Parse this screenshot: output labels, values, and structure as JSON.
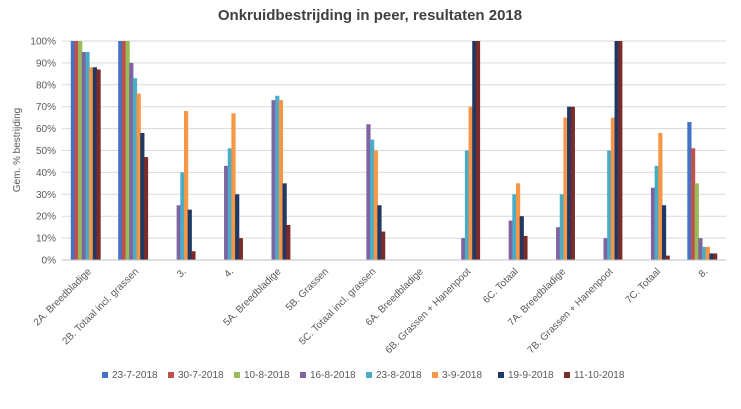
{
  "chart_data": {
    "type": "bar",
    "title": "Onkruidbestrijding in peer, resultaten 2018",
    "xlabel": "",
    "ylabel": "Gem. % bestrijding",
    "ylim": [
      0,
      100
    ],
    "yticks": [
      "0%",
      "10%",
      "20%",
      "30%",
      "40%",
      "50%",
      "60%",
      "70%",
      "80%",
      "90%",
      "100%"
    ],
    "grid": true,
    "legend_position": "bottom",
    "categories": [
      "2A. Breedbladige",
      "2B. Totaal incl. grassen",
      "3.",
      "4.",
      "5A. Breedbladige",
      "5B. Grassen",
      "5C. Totaal incl. grassen",
      "6A. Breedbladige",
      "6B. Grassen + Hanenpoot",
      "6C. Totaal",
      "7A. Breedbladige",
      "7B. Grassen + Hanenpoot",
      "7C. Totaal",
      "8."
    ],
    "series": [
      {
        "name": "23-7-2018",
        "color": "#4472C4",
        "values": [
          100,
          100,
          0,
          0,
          0,
          0,
          0,
          0,
          0,
          0,
          0,
          0,
          0,
          63
        ]
      },
      {
        "name": "30-7-2018",
        "color": "#C0504D",
        "values": [
          100,
          100,
          0,
          0,
          0,
          0,
          0,
          0,
          0,
          0,
          0,
          0,
          0,
          51
        ]
      },
      {
        "name": "10-8-2018",
        "color": "#9BBB59",
        "values": [
          100,
          100,
          0,
          0,
          0,
          0,
          0,
          0,
          0,
          0,
          0,
          0,
          0,
          35
        ]
      },
      {
        "name": "16-8-2018",
        "color": "#8064A2",
        "values": [
          95,
          90,
          25,
          43,
          73,
          0,
          62,
          0,
          10,
          18,
          15,
          10,
          33,
          10
        ]
      },
      {
        "name": "23-8-2018",
        "color": "#4BACC6",
        "values": [
          95,
          83,
          40,
          51,
          75,
          0,
          55,
          0,
          50,
          30,
          30,
          50,
          43,
          6
        ]
      },
      {
        "name": "3-9-2018",
        "color": "#F79646",
        "values": [
          88,
          76,
          68,
          67,
          73,
          0,
          50,
          0,
          70,
          35,
          65,
          65,
          58,
          6
        ]
      },
      {
        "name": "19-9-2018",
        "color": "#1F3864",
        "values": [
          88,
          58,
          23,
          30,
          35,
          0,
          25,
          0,
          100,
          20,
          70,
          100,
          25,
          3
        ]
      },
      {
        "name": "11-10-2018",
        "color": "#7B2C2A",
        "values": [
          87,
          47,
          4,
          10,
          16,
          0,
          13,
          0,
          100,
          11,
          70,
          100,
          2,
          3
        ]
      }
    ]
  }
}
